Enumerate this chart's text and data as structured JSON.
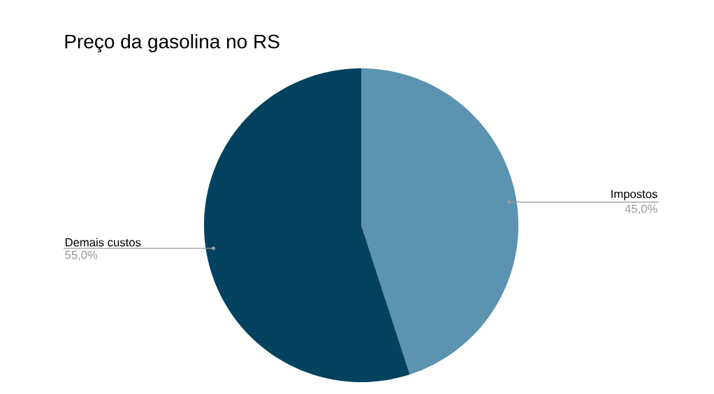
{
  "chart_data": {
    "type": "pie",
    "title": "Preço da gasolina no RS",
    "categories": [
      "Impostos",
      "Demais custos"
    ],
    "values": [
      45,
      55
    ],
    "value_labels": [
      "45,0%",
      "55,0%"
    ],
    "colors": [
      "#5b93b0",
      "#02425e"
    ]
  }
}
